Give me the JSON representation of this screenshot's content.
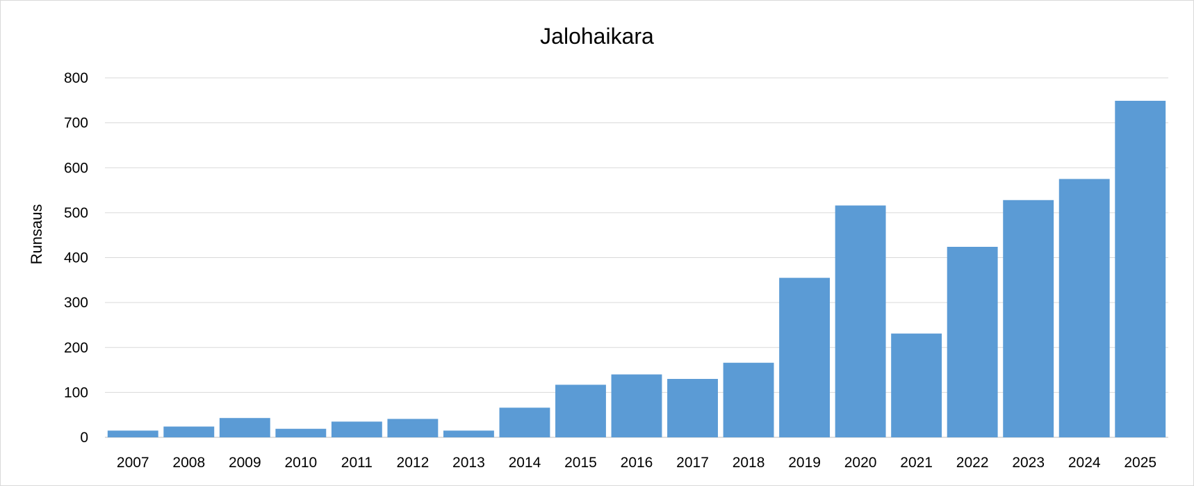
{
  "chart_data": {
    "type": "bar",
    "title": "Jalohaikara",
    "xlabel": "",
    "ylabel": "Runsaus",
    "ylim": [
      0,
      800
    ],
    "yticks": [
      0,
      100,
      200,
      300,
      400,
      500,
      600,
      700,
      800
    ],
    "grid": true,
    "legend": "none",
    "bar_color": "#5b9bd5",
    "categories": [
      "2007",
      "2008",
      "2009",
      "2010",
      "2011",
      "2012",
      "2013",
      "2014",
      "2015",
      "2016",
      "2017",
      "2018",
      "2019",
      "2020",
      "2021",
      "2022",
      "2023",
      "2024",
      "2025"
    ],
    "values": [
      15,
      24,
      43,
      19,
      35,
      41,
      15,
      66,
      117,
      140,
      130,
      166,
      355,
      516,
      231,
      424,
      528,
      575,
      749
    ]
  }
}
